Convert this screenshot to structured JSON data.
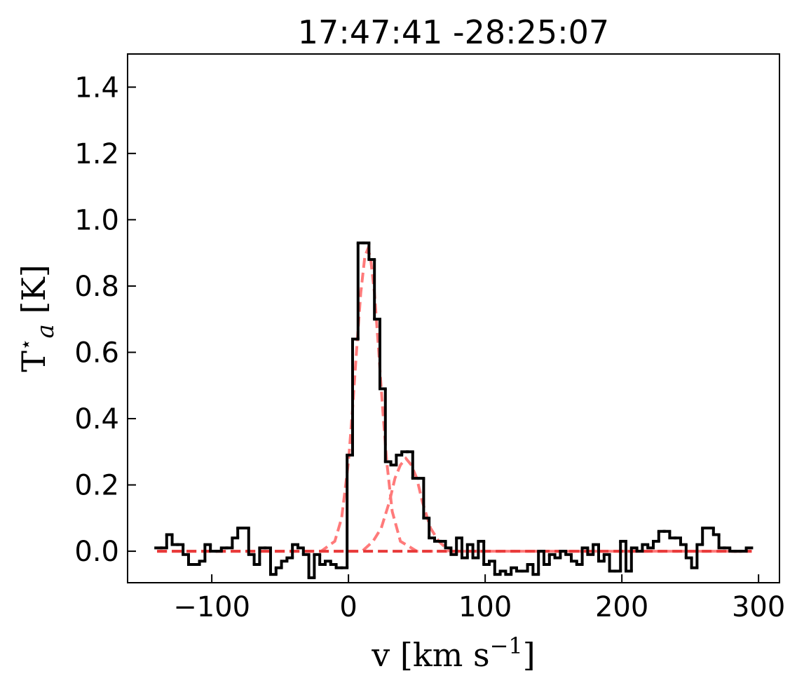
{
  "chart_data": {
    "type": "step",
    "title": "17:47:41 -28:25:07",
    "xlabel": {
      "text": "v [km s",
      "sup": "−1",
      "end": "]"
    },
    "ylabel": {
      "text": "T",
      "sup": "⋆",
      "sub": "a",
      "end": " [K]"
    },
    "xlim": [
      -161.6,
      315.3
    ],
    "ylim": [
      -0.095,
      1.5
    ],
    "xticks": [
      {
        "value": -100,
        "label": "−100"
      },
      0,
      100,
      200,
      300
    ],
    "yticks": [
      {
        "value": 0,
        "label": "0.0"
      },
      0.2,
      0.4,
      0.6,
      0.8,
      {
        "value": 1,
        "label": "1.0"
      },
      1.2,
      1.4
    ],
    "series": [
      {
        "color": "#000000",
        "x": [
          -139,
          -135,
          -131,
          -127,
          -123,
          -119,
          -115,
          -111,
          -107,
          -103,
          -99,
          -95,
          -91,
          -87,
          -83,
          -79,
          -75,
          -71,
          -67,
          -63,
          -59,
          -55,
          -51,
          -47,
          -43,
          -39,
          -35,
          -31,
          -27,
          -23,
          -19,
          -15,
          -11,
          -7,
          -3,
          1,
          5,
          9,
          13,
          17,
          21,
          25,
          29,
          33,
          37,
          41,
          45,
          49,
          53,
          57,
          61,
          65,
          69,
          73,
          77,
          81,
          85,
          89,
          93,
          97,
          101,
          105,
          109,
          113,
          117,
          121,
          125,
          129,
          133,
          137,
          141,
          145,
          149,
          153,
          157,
          161,
          165,
          169,
          173,
          177,
          181,
          185,
          189,
          193,
          197,
          201,
          205,
          209,
          213,
          217,
          221,
          225,
          229,
          233,
          237,
          241,
          245,
          249,
          253,
          257,
          261,
          265,
          269,
          273,
          277,
          281,
          285,
          289,
          293
        ],
        "values": [
          0.01,
          0.01,
          0.05,
          0.02,
          0.02,
          -0.01,
          -0.04,
          -0.04,
          -0.03,
          0.02,
          0.0,
          0.0,
          0.01,
          0.01,
          0.04,
          0.07,
          0.07,
          -0.01,
          -0.04,
          0.01,
          0.01,
          -0.07,
          -0.05,
          -0.03,
          -0.02,
          0.02,
          0.01,
          -0.01,
          -0.08,
          -0.01,
          -0.04,
          -0.03,
          -0.04,
          -0.05,
          -0.05,
          0.29,
          0.64,
          0.93,
          0.93,
          0.88,
          0.7,
          0.49,
          0.27,
          0.26,
          0.29,
          0.3,
          0.3,
          0.22,
          0.22,
          0.1,
          0.04,
          0.03,
          0.03,
          0.01,
          -0.01,
          0.04,
          -0.02,
          0.02,
          -0.02,
          0.03,
          -0.04,
          -0.03,
          -0.07,
          -0.06,
          -0.07,
          -0.05,
          -0.06,
          -0.06,
          -0.04,
          -0.07,
          0.0,
          -0.04,
          -0.01,
          -0.02,
          0.0,
          -0.01,
          -0.03,
          -0.04,
          0.01,
          -0.01,
          0.02,
          -0.03,
          -0.01,
          -0.06,
          -0.06,
          0.03,
          -0.06,
          0.01,
          0.0,
          0.02,
          0.01,
          0.03,
          0.06,
          0.06,
          0.04,
          0.04,
          0.02,
          -0.02,
          -0.05,
          0.02,
          0.07,
          0.07,
          0.05,
          0.01,
          0.01,
          0.0,
          0.0,
          0.0,
          0.01
        ]
      },
      {
        "color": "#ff7a7a",
        "dashed": true,
        "x": [
          -140,
          -20,
          -10,
          -5,
          0,
          3,
          6,
          9,
          12,
          14,
          16,
          19,
          22,
          25,
          28,
          32,
          38,
          50,
          295
        ],
        "values": [
          0,
          0,
          0.03,
          0.1,
          0.27,
          0.43,
          0.61,
          0.78,
          0.89,
          0.91,
          0.89,
          0.78,
          0.61,
          0.43,
          0.27,
          0.12,
          0.03,
          0,
          0
        ]
      },
      {
        "color": "#ff7a7a",
        "dashed": true,
        "x": [
          -140,
          0,
          10,
          18,
          24,
          30,
          34,
          38,
          42,
          46,
          50,
          54,
          60,
          66,
          74,
          90,
          295
        ],
        "values": [
          0,
          0,
          0,
          0.03,
          0.07,
          0.15,
          0.22,
          0.26,
          0.28,
          0.26,
          0.22,
          0.15,
          0.07,
          0.03,
          0,
          0,
          0
        ]
      },
      {
        "color": "#e83a3a",
        "dashed": true,
        "x": [
          -140,
          295
        ],
        "values": [
          0,
          0
        ]
      }
    ]
  }
}
